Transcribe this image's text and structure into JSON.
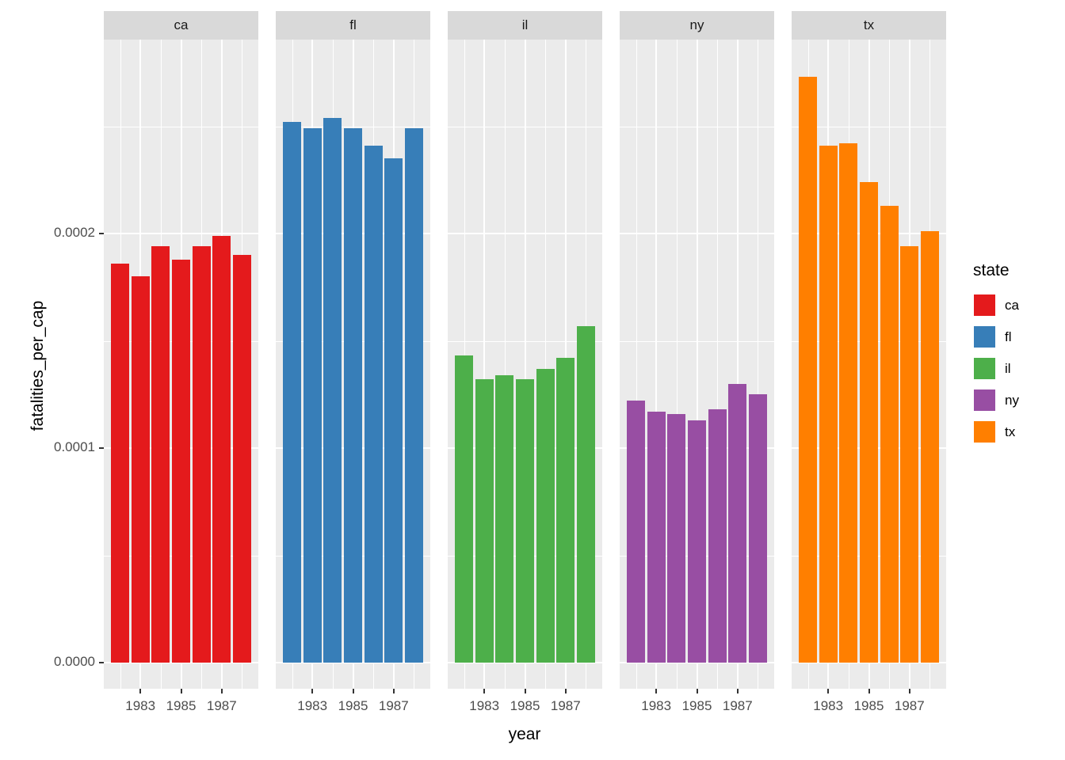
{
  "chart_data": {
    "type": "bar",
    "title": "",
    "xlabel": "year",
    "ylabel": "fatalities_per_cap",
    "facet_by": "state",
    "facets": [
      "ca",
      "fl",
      "il",
      "ny",
      "tx"
    ],
    "x": [
      1982,
      1983,
      1984,
      1985,
      1986,
      1987,
      1988
    ],
    "x_major_ticks": [
      1983,
      1985,
      1987
    ],
    "x_tick_labels": [
      "1983",
      "1985",
      "1987"
    ],
    "x_minor_gridlines": [
      1982,
      1984,
      1986,
      1988
    ],
    "y_ticks": [
      0,
      0.0001,
      0.0002
    ],
    "y_tick_labels": [
      "0.0000",
      "0.0001",
      "0.0002"
    ],
    "y_minor_gridlines": [
      5e-05,
      0.00015,
      0.00025
    ],
    "ylim": [
      -1.37e-05,
      0.000287
    ],
    "grid": true,
    "legend": {
      "title": "state",
      "position": "right",
      "entries": [
        {
          "label": "ca",
          "color": "#E41A1C"
        },
        {
          "label": "fl",
          "color": "#377EB8"
        },
        {
          "label": "il",
          "color": "#4DAF4A"
        },
        {
          "label": "ny",
          "color": "#984EA3"
        },
        {
          "label": "tx",
          "color": "#FF7F00"
        }
      ]
    },
    "series": [
      {
        "name": "ca",
        "color": "#E41A1C",
        "values": [
          0.000186,
          0.00018,
          0.000194,
          0.000188,
          0.000194,
          0.000199,
          0.00019
        ]
      },
      {
        "name": "fl",
        "color": "#377EB8",
        "values": [
          0.000252,
          0.000249,
          0.000254,
          0.000249,
          0.000241,
          0.000235,
          0.000249
        ]
      },
      {
        "name": "il",
        "color": "#4DAF4A",
        "values": [
          0.000143,
          0.000132,
          0.000134,
          0.000132,
          0.000137,
          0.000142,
          0.000157
        ]
      },
      {
        "name": "ny",
        "color": "#984EA3",
        "values": [
          0.000122,
          0.000117,
          0.000116,
          0.000113,
          0.000118,
          0.00013,
          0.000125
        ]
      },
      {
        "name": "tx",
        "color": "#FF7F00",
        "values": [
          0.000273,
          0.000241,
          0.000242,
          0.000224,
          0.000213,
          0.000194,
          0.000201
        ]
      }
    ],
    "colors": {
      "panel_background": "#EBEBEB",
      "strip_background": "#D9D9D9",
      "gridline": "#FFFFFF",
      "axis_text": "#4D4D4D",
      "title_text": "#000000"
    }
  }
}
